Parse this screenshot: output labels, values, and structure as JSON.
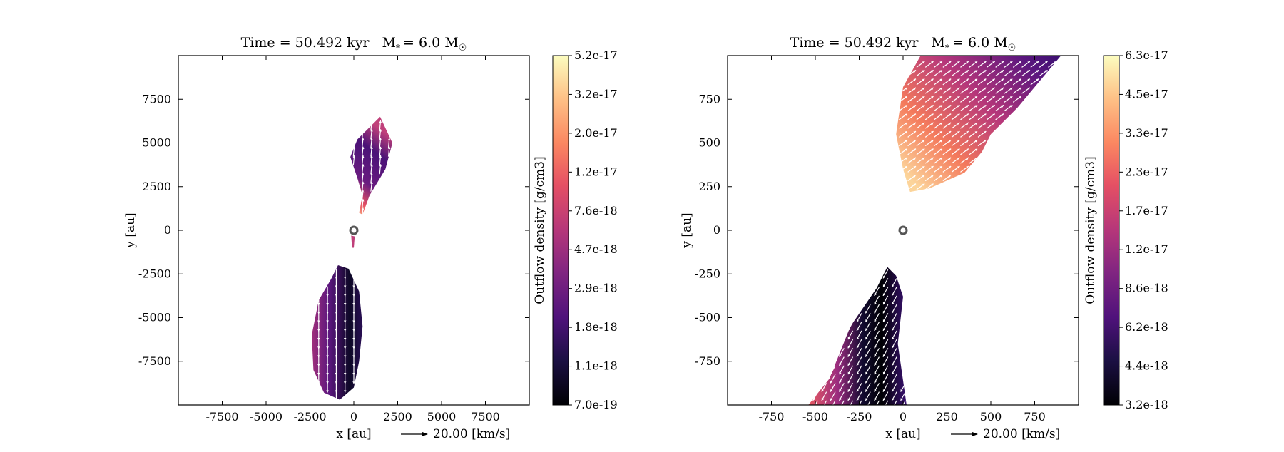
{
  "chart_data": [
    {
      "type": "heatmap",
      "title": "Time = 50.492 kyr    M$_*$ = 6.0 M$_\\odot$",
      "title_text": "Time = 50.492 kyr",
      "title_mass": "M",
      "title_star": "*",
      "title_mass_value": "= 6.0 M",
      "title_sun": "☉",
      "xlabel": "x [au]",
      "ylabel": "y [au]",
      "xlim": [
        -10000,
        10000
      ],
      "ylim": [
        -10000,
        10000
      ],
      "xticks": [
        -7500,
        -5000,
        -2500,
        0,
        2500,
        5000,
        7500
      ],
      "yticks": [
        7500,
        5000,
        2500,
        0,
        -2500,
        -5000,
        -7500
      ],
      "xtick_labels": [
        "-7500",
        "-5000",
        "-2500",
        "0",
        "2500",
        "5000",
        "7500"
      ],
      "ytick_labels": [
        "7500",
        "5000",
        "2500",
        "0",
        "-2500",
        "-5000",
        "-7500"
      ],
      "colorbar_label": "Outflow density [g/cm3]",
      "colorbar_scale": "log",
      "colorbar_ticks": [
        "5.2e-17",
        "3.2e-17",
        "2.0e-17",
        "1.2e-17",
        "7.6e-18",
        "4.7e-18",
        "2.9e-18",
        "1.8e-18",
        "1.1e-18",
        "7.0e-19"
      ],
      "colorbar_range": [
        7e-19,
        5.2e-17
      ],
      "colormap": "magma",
      "quiver_key": "20.00 [km/s]",
      "star_position": [
        0,
        0
      ],
      "lobes": [
        {
          "name": "north",
          "outline": [
            [
              300,
              1000
            ],
            [
              500,
              2000
            ],
            [
              200,
              3000
            ],
            [
              -200,
              4200
            ],
            [
              200,
              5200
            ],
            [
              800,
              5800
            ],
            [
              1500,
              6500
            ],
            [
              2200,
              5000
            ],
            [
              1800,
              3500
            ],
            [
              900,
              2000
            ],
            [
              500,
              900
            ]
          ],
          "density_max": 2e-17,
          "density_min": 2.2e-18
        },
        {
          "name": "south",
          "outline": [
            [
              -900,
              -2000
            ],
            [
              -300,
              -2200
            ],
            [
              300,
              -3500
            ],
            [
              500,
              -5500
            ],
            [
              300,
              -7500
            ],
            [
              0,
              -9000
            ],
            [
              -800,
              -9700
            ],
            [
              -1700,
              -9300
            ],
            [
              -2300,
              -8000
            ],
            [
              -2400,
              -6000
            ],
            [
              -2000,
              -4000
            ],
            [
              -1300,
              -2800
            ]
          ],
          "density_max": 5e-18,
          "density_min": 7e-19
        }
      ]
    },
    {
      "type": "heatmap",
      "title_text": "Time = 50.492 kyr",
      "title_mass": "M",
      "title_star": "*",
      "title_mass_value": "= 6.0 M",
      "title_sun": "☉",
      "xlabel": "x [au]",
      "ylabel": "y [au]",
      "xlim": [
        -1000,
        1000
      ],
      "ylim": [
        -1000,
        1000
      ],
      "xticks": [
        -750,
        -500,
        -250,
        0,
        250,
        500,
        750
      ],
      "yticks": [
        750,
        500,
        250,
        0,
        -250,
        -500,
        -750
      ],
      "xtick_labels": [
        "-750",
        "-500",
        "-250",
        "0",
        "250",
        "500",
        "750"
      ],
      "ytick_labels": [
        "750",
        "500",
        "250",
        "0",
        "-250",
        "-500",
        "-750"
      ],
      "colorbar_label": "Outflow density [g/cm3]",
      "colorbar_scale": "log",
      "colorbar_ticks": [
        "6.3e-17",
        "4.5e-17",
        "3.3e-17",
        "2.3e-17",
        "1.7e-17",
        "1.2e-17",
        "8.6e-18",
        "6.2e-18",
        "4.4e-18",
        "3.2e-18"
      ],
      "colorbar_range": [
        3.2e-18,
        6.3e-17
      ],
      "colormap": "magma",
      "quiver_key": "20.00 [km/s]",
      "star_position": [
        0,
        0
      ],
      "lobes": [
        {
          "name": "north",
          "outline": [
            [
              40,
              220
            ],
            [
              150,
              240
            ],
            [
              350,
              330
            ],
            [
              450,
              450
            ],
            [
              500,
              550
            ],
            [
              650,
              700
            ],
            [
              900,
              1000
            ],
            [
              100,
              1000
            ],
            [
              0,
              820
            ],
            [
              -40,
              550
            ],
            [
              0,
              350
            ]
          ],
          "density_max": 6e-17,
          "density_min": 5e-18
        },
        {
          "name": "south",
          "outline": [
            [
              -90,
              -210
            ],
            [
              -40,
              -260
            ],
            [
              0,
              -380
            ],
            [
              -30,
              -650
            ],
            [
              20,
              -1000
            ],
            [
              -540,
              -1000
            ],
            [
              -420,
              -850
            ],
            [
              -300,
              -550
            ],
            [
              -150,
              -330
            ]
          ],
          "density_max": 2.5e-17,
          "density_min": 3.2e-18
        }
      ]
    }
  ]
}
